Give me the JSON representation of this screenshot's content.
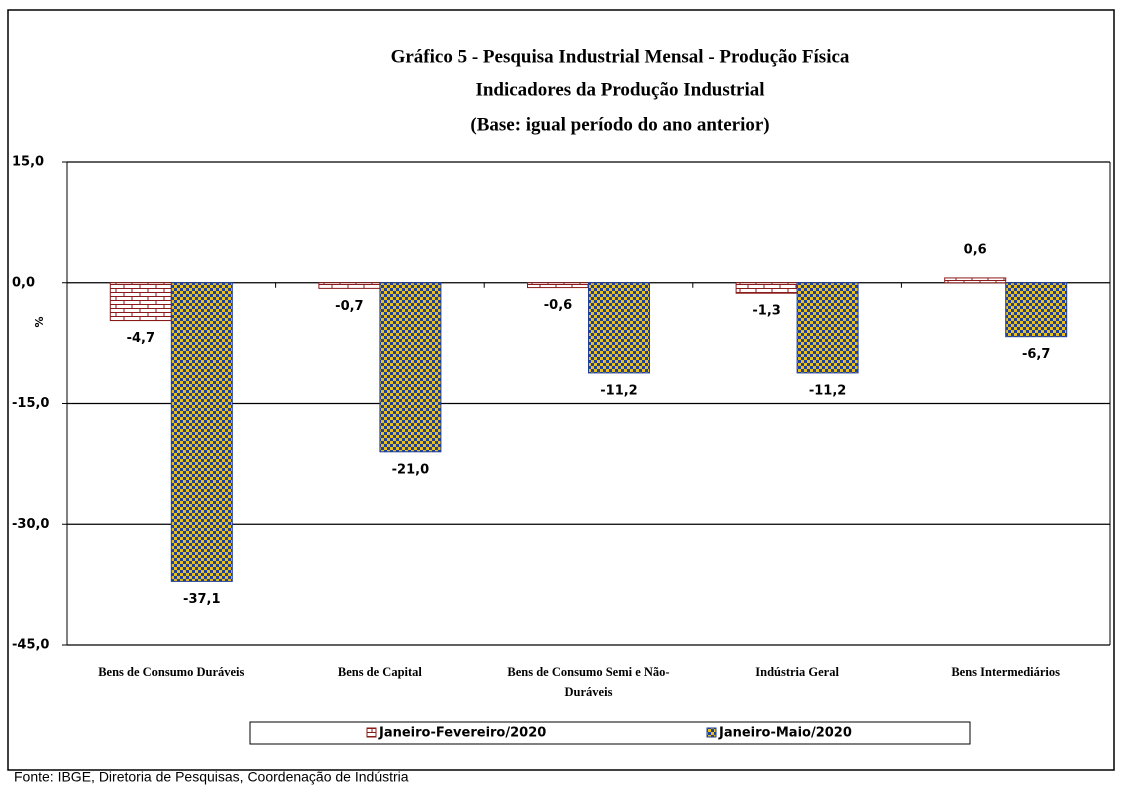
{
  "chart_data": {
    "type": "bar",
    "title": "Gráfico 5 - Pesquisa Industrial Mensal - Produção Física",
    "subtitle": [
      "Indicadores da Produção Industrial",
      "(Base: igual período do ano anterior)"
    ],
    "ylabel": "%",
    "categories": [
      "Bens de Consumo Duráveis",
      "Bens de Capital",
      "Bens de Consumo Semi e Não-Duráveis",
      "Indústria Geral",
      "Bens Intermediários"
    ],
    "series": [
      {
        "name": "Janeiro-Fevereiro/2020",
        "color": "#8b1a1a",
        "values": [
          -4.7,
          -0.7,
          -0.6,
          -1.3,
          0.6
        ],
        "value_labels": [
          "-4,7",
          "-0,7",
          "-0,6",
          "-1,3",
          "0,6"
        ]
      },
      {
        "name": "Janeiro-Maio/2020",
        "color": "#1f3f99",
        "values": [
          -37.1,
          -21.0,
          -11.2,
          -11.2,
          -6.7
        ],
        "value_labels": [
          "-37,1",
          "-21,0",
          "-11,2",
          "-11,2",
          "-6,7"
        ]
      }
    ],
    "ylim": [
      -45,
      15
    ],
    "yticks": [
      {
        "value": -45,
        "label": "-45,0"
      },
      {
        "value": -30,
        "label": "-30,0"
      },
      {
        "value": -15,
        "label": "-15,0"
      },
      {
        "value": 0,
        "label": "0,0"
      },
      {
        "value": 15,
        "label": "15,0"
      }
    ],
    "grid": true,
    "legend": "bottom",
    "source": "Fonte: IBGE, Diretoria de Pesquisas, Coordenação de Indústria"
  }
}
